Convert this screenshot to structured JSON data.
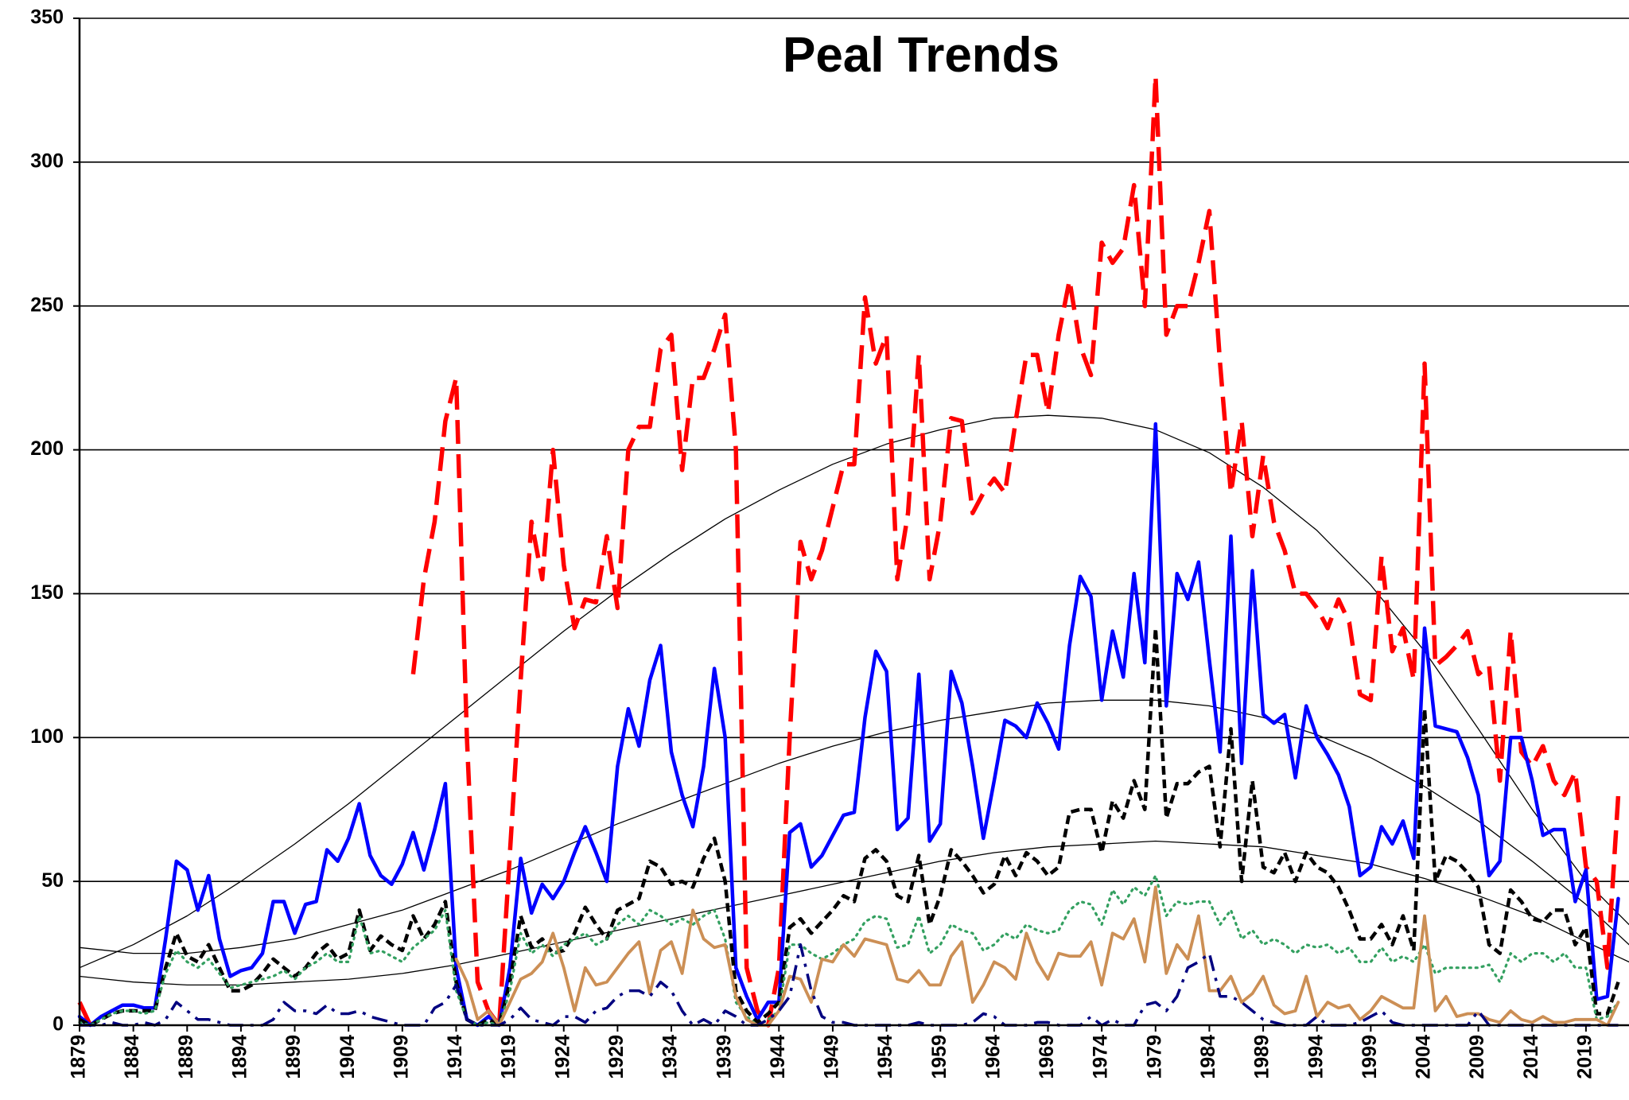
{
  "chart_data": {
    "type": "line",
    "title": "Peal Trends",
    "x": [
      1879,
      1880,
      1881,
      1882,
      1883,
      1884,
      1885,
      1886,
      1887,
      1888,
      1889,
      1890,
      1891,
      1892,
      1893,
      1894,
      1895,
      1896,
      1897,
      1898,
      1899,
      1900,
      1901,
      1902,
      1903,
      1904,
      1905,
      1906,
      1907,
      1908,
      1909,
      1910,
      1911,
      1912,
      1913,
      1914,
      1915,
      1916,
      1917,
      1918,
      1919,
      1920,
      1921,
      1922,
      1923,
      1924,
      1925,
      1926,
      1927,
      1928,
      1929,
      1930,
      1931,
      1932,
      1933,
      1934,
      1935,
      1936,
      1937,
      1938,
      1939,
      1940,
      1941,
      1942,
      1943,
      1944,
      1945,
      1946,
      1947,
      1948,
      1949,
      1950,
      1951,
      1952,
      1953,
      1954,
      1955,
      1956,
      1957,
      1958,
      1959,
      1960,
      1961,
      1962,
      1963,
      1964,
      1965,
      1966,
      1967,
      1968,
      1969,
      1970,
      1971,
      1972,
      1973,
      1974,
      1975,
      1976,
      1977,
      1978,
      1979,
      1980,
      1981,
      1982,
      1983,
      1984,
      1985,
      1986,
      1987,
      1988,
      1989,
      1990,
      1991,
      1992,
      1993,
      1994,
      1995,
      1996,
      1997,
      1998,
      1999,
      2000,
      2001,
      2002,
      2003,
      2004,
      2005,
      2006,
      2007,
      2008,
      2009,
      2010,
      2011,
      2012,
      2013,
      2014,
      2015,
      2016,
      2017,
      2018,
      2019,
      2020,
      2021,
      2022
    ],
    "xlim": [
      1879,
      2023
    ],
    "xticks": [
      1879,
      1884,
      1889,
      1894,
      1899,
      1904,
      1909,
      1914,
      1919,
      1924,
      1929,
      1934,
      1939,
      1944,
      1949,
      1954,
      1959,
      1964,
      1969,
      1974,
      1979,
      1984,
      1989,
      1994,
      1999,
      2004,
      2009,
      2014,
      2019
    ],
    "ylim": [
      0,
      350
    ],
    "yticks": [
      0,
      50,
      100,
      150,
      200,
      250,
      300,
      350
    ],
    "grid": true,
    "series": [
      {
        "color": "#ff0000",
        "dash": "dashed",
        "values": [
          8,
          0,
          null,
          null,
          null,
          null,
          null,
          null,
          null,
          null,
          null,
          null,
          null,
          null,
          null,
          null,
          null,
          null,
          null,
          null,
          null,
          null,
          null,
          null,
          null,
          null,
          null,
          null,
          null,
          null,
          null,
          122,
          155,
          175,
          210,
          225,
          100,
          15,
          5,
          0,
          60,
          120,
          175,
          155,
          200,
          160,
          138,
          148,
          147,
          170,
          145,
          200,
          208,
          208,
          235,
          240,
          193,
          225,
          225,
          235,
          247,
          200,
          20,
          5,
          0,
          20,
          100,
          168,
          155,
          165,
          180,
          195,
          195,
          253,
          230,
          240,
          155,
          178,
          233,
          155,
          175,
          211,
          210,
          178,
          185,
          190,
          185,
          210,
          233,
          233,
          213,
          240,
          259,
          236,
          226,
          272,
          265,
          270,
          292,
          250,
          330,
          240,
          250,
          250,
          265,
          283,
          230,
          185,
          210,
          170,
          198,
          175,
          165,
          150,
          150,
          145,
          138,
          148,
          140,
          115,
          113,
          163,
          130,
          138,
          120,
          230,
          125,
          128,
          132,
          137,
          122,
          125,
          85,
          137,
          95,
          90,
          97,
          85,
          80,
          88,
          55,
          50,
          20,
          80
        ]
      },
      {
        "color": "#0000ff",
        "dash": "solid",
        "values": [
          3,
          0,
          3,
          5,
          7,
          7,
          6,
          6,
          30,
          57,
          54,
          40,
          52,
          30,
          17,
          19,
          20,
          25,
          43,
          43,
          32,
          42,
          43,
          61,
          57,
          65,
          77,
          59,
          52,
          49,
          56,
          67,
          54,
          68,
          84,
          20,
          2,
          0,
          3,
          0,
          20,
          58,
          39,
          49,
          44,
          50,
          60,
          69,
          60,
          50,
          90,
          110,
          97,
          120,
          132,
          95,
          80,
          69,
          90,
          124,
          100,
          20,
          10,
          2,
          8,
          8,
          67,
          70,
          55,
          59,
          66,
          73,
          74,
          107,
          130,
          123,
          68,
          72,
          122,
          64,
          70,
          123,
          112,
          90,
          65,
          85,
          106,
          104,
          100,
          112,
          105,
          96,
          132,
          156,
          149,
          113,
          137,
          121,
          157,
          126,
          209,
          111,
          157,
          148,
          161,
          127,
          95,
          170,
          91,
          158,
          108,
          105,
          108,
          86,
          111,
          100,
          94,
          87,
          76,
          52,
          55,
          69,
          63,
          71,
          58,
          138,
          104,
          103,
          102,
          93,
          80,
          52,
          57,
          100,
          100,
          85,
          66,
          68,
          68,
          43,
          54,
          9,
          10,
          44
        ]
      },
      {
        "color": "#000000",
        "dash": "short-dashed",
        "values": [
          2,
          0,
          2,
          4,
          5,
          5,
          5,
          5,
          20,
          32,
          24,
          22,
          28,
          20,
          12,
          12,
          14,
          18,
          23,
          20,
          17,
          20,
          25,
          28,
          23,
          25,
          40,
          26,
          31,
          28,
          26,
          38,
          30,
          35,
          43,
          15,
          2,
          0,
          2,
          0,
          15,
          38,
          27,
          30,
          25,
          26,
          32,
          41,
          35,
          30,
          40,
          42,
          44,
          57,
          55,
          49,
          50,
          48,
          58,
          65,
          50,
          12,
          5,
          1,
          4,
          8,
          34,
          37,
          32,
          36,
          40,
          45,
          43,
          58,
          61,
          57,
          45,
          43,
          59,
          35,
          45,
          61,
          57,
          52,
          46,
          49,
          59,
          52,
          60,
          57,
          52,
          55,
          74,
          75,
          75,
          60,
          78,
          72,
          85,
          75,
          138,
          72,
          84,
          84,
          88,
          90,
          62,
          103,
          50,
          85,
          55,
          53,
          60,
          50,
          60,
          55,
          53,
          48,
          40,
          30,
          30,
          35,
          28,
          38,
          26,
          110,
          50,
          59,
          57,
          53,
          48,
          28,
          25,
          47,
          43,
          37,
          36,
          40,
          40,
          28,
          34,
          4,
          4,
          15
        ]
      },
      {
        "color": "#33a060",
        "dash": "dotted",
        "values": [
          1,
          0,
          2,
          4,
          5,
          5,
          4,
          5,
          18,
          26,
          22,
          20,
          23,
          18,
          13,
          14,
          15,
          16,
          17,
          19,
          16,
          20,
          22,
          25,
          22,
          22,
          38,
          25,
          26,
          24,
          22,
          27,
          30,
          33,
          40,
          12,
          2,
          0,
          1,
          0,
          12,
          32,
          25,
          28,
          24,
          28,
          30,
          32,
          28,
          30,
          35,
          38,
          35,
          40,
          38,
          35,
          37,
          35,
          38,
          40,
          30,
          8,
          3,
          0,
          2,
          5,
          28,
          28,
          25,
          23,
          25,
          28,
          30,
          36,
          38,
          37,
          27,
          28,
          38,
          25,
          28,
          35,
          33,
          32,
          26,
          28,
          32,
          30,
          35,
          33,
          32,
          33,
          40,
          43,
          42,
          35,
          47,
          42,
          48,
          45,
          52,
          38,
          43,
          42,
          43,
          43,
          35,
          40,
          30,
          33,
          28,
          30,
          28,
          25,
          28,
          27,
          28,
          25,
          27,
          22,
          22,
          27,
          22,
          24,
          22,
          28,
          18,
          20,
          20,
          20,
          20,
          21,
          15,
          25,
          22,
          25,
          25,
          22,
          25,
          20,
          20,
          2,
          3,
          8
        ]
      },
      {
        "color": "#cc8f55",
        "dash": "solid",
        "values": [
          null,
          null,
          null,
          null,
          null,
          null,
          null,
          null,
          null,
          null,
          null,
          null,
          null,
          null,
          null,
          null,
          null,
          null,
          null,
          null,
          null,
          null,
          null,
          null,
          null,
          null,
          null,
          null,
          null,
          null,
          null,
          null,
          null,
          null,
          null,
          23,
          15,
          2,
          5,
          0,
          8,
          16,
          18,
          22,
          32,
          20,
          5,
          20,
          14,
          15,
          20,
          25,
          29,
          11,
          26,
          29,
          18,
          40,
          30,
          27,
          28,
          10,
          2,
          0,
          0,
          5,
          17,
          16,
          8,
          23,
          22,
          28,
          24,
          30,
          29,
          28,
          16,
          15,
          19,
          14,
          14,
          24,
          29,
          8,
          14,
          22,
          20,
          16,
          32,
          22,
          16,
          25,
          24,
          24,
          29,
          14,
          32,
          30,
          37,
          22,
          48,
          18,
          28,
          23,
          38,
          12,
          12,
          17,
          8,
          11,
          17,
          7,
          4,
          5,
          17,
          3,
          8,
          6,
          7,
          2,
          5,
          10,
          8,
          6,
          6,
          38,
          5,
          10,
          3,
          4,
          4,
          2,
          1,
          5,
          2,
          1,
          3,
          1,
          1,
          2,
          2,
          2,
          0,
          8
        ]
      },
      {
        "color": "#000080",
        "dash": "dash-dot",
        "values": [
          0,
          0,
          0,
          1,
          0,
          0,
          1,
          0,
          2,
          8,
          5,
          2,
          2,
          1,
          0,
          0,
          0,
          0,
          2,
          8,
          5,
          5,
          4,
          7,
          4,
          4,
          5,
          3,
          2,
          1,
          0,
          0,
          0,
          6,
          8,
          14,
          2,
          0,
          0,
          0,
          2,
          6,
          2,
          1,
          0,
          3,
          3,
          1,
          5,
          6,
          10,
          12,
          12,
          10,
          15,
          12,
          5,
          0,
          2,
          0,
          5,
          3,
          0,
          0,
          2,
          5,
          10,
          28,
          12,
          3,
          1,
          1,
          0,
          0,
          0,
          0,
          0,
          0,
          1,
          0,
          0,
          0,
          0,
          1,
          4,
          3,
          0,
          0,
          0,
          1,
          1,
          0,
          0,
          0,
          3,
          0,
          2,
          0,
          0,
          7,
          8,
          5,
          10,
          20,
          22,
          25,
          10,
          10,
          8,
          5,
          2,
          1,
          0,
          0,
          0,
          3,
          0,
          0,
          0,
          1,
          3,
          5,
          1,
          0,
          0,
          0,
          0,
          0,
          0,
          0,
          5,
          0,
          0,
          0,
          0,
          0,
          0,
          0,
          0,
          0,
          0,
          0,
          0,
          0
        ]
      },
      {
        "color": "#000000",
        "dash": "trend",
        "x": [
          1879,
          1884,
          1889,
          1894,
          1899,
          1904,
          1909,
          1914,
          1919,
          1924,
          1929,
          1934,
          1939,
          1944,
          1949,
          1954,
          1959,
          1964,
          1969,
          1974,
          1979,
          1984,
          1989,
          1994,
          1999,
          2004,
          2009,
          2014,
          2019,
          2023
        ],
        "values": [
          20,
          28,
          38,
          50,
          63,
          77,
          92,
          107,
          122,
          137,
          151,
          164,
          176,
          186,
          195,
          202,
          207,
          211,
          212,
          211,
          207,
          199,
          187,
          172,
          153,
          130,
          103,
          75,
          50,
          35
        ]
      },
      {
        "color": "#000000",
        "dash": "trend",
        "x": [
          1879,
          1884,
          1889,
          1894,
          1899,
          1904,
          1909,
          1914,
          1919,
          1924,
          1929,
          1934,
          1939,
          1944,
          1949,
          1954,
          1959,
          1964,
          1969,
          1974,
          1979,
          1984,
          1989,
          1994,
          1999,
          2004,
          2009,
          2014,
          2019,
          2023
        ],
        "values": [
          27,
          25,
          25,
          27,
          30,
          35,
          40,
          47,
          54,
          62,
          70,
          77,
          84,
          91,
          97,
          102,
          106,
          109,
          112,
          113,
          113,
          111,
          107,
          101,
          93,
          83,
          71,
          57,
          42,
          28
        ]
      },
      {
        "color": "#000000",
        "dash": "trend",
        "x": [
          1879,
          1884,
          1889,
          1894,
          1899,
          1904,
          1909,
          1914,
          1919,
          1924,
          1929,
          1934,
          1939,
          1944,
          1949,
          1954,
          1959,
          1964,
          1969,
          1974,
          1979,
          1984,
          1989,
          1994,
          1999,
          2004,
          2009,
          2014,
          2019,
          2023
        ],
        "values": [
          17,
          15,
          14,
          14,
          15,
          16,
          18,
          21,
          25,
          29,
          33,
          37,
          41,
          45,
          49,
          53,
          57,
          60,
          62,
          63,
          64,
          63,
          62,
          59,
          56,
          51,
          45,
          38,
          29,
          22
        ]
      }
    ]
  }
}
